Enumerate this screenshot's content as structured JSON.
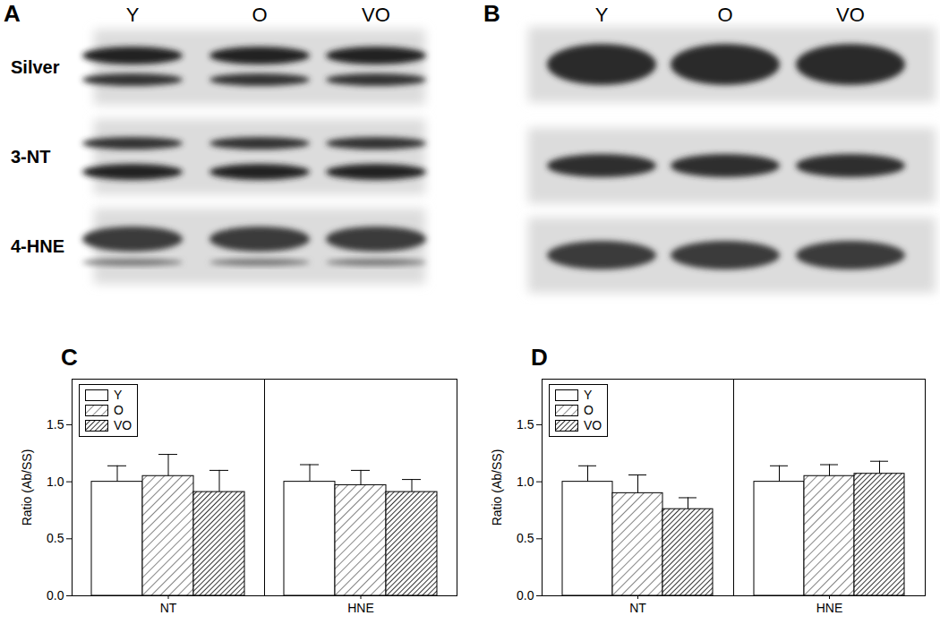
{
  "chart_data": [
    {
      "panel": "C",
      "type": "bar",
      "categories": [
        "NT",
        "HNE"
      ],
      "ylabel": "Ratio (Ab/SS)",
      "ylim": [
        0,
        1.9
      ],
      "yticks": [
        {
          "value": 0,
          "label": "0.0"
        },
        {
          "value": 0.5,
          "label": "0.5"
        },
        {
          "value": 1,
          "label": "1.0"
        },
        {
          "value": 1.5,
          "label": "1.5"
        }
      ],
      "legend": "top-left",
      "series": [
        {
          "name": "Y",
          "color": "#ffffff",
          "marker": "none",
          "values": [
            1.0,
            1.0
          ],
          "errors": [
            0.14,
            0.15
          ]
        },
        {
          "name": "O",
          "color": "#333333",
          "marker": "hatch",
          "values": [
            1.05,
            0.97
          ],
          "errors": [
            0.19,
            0.13
          ]
        },
        {
          "name": "VO",
          "color": "#333333",
          "marker": "dense_hatch",
          "values": [
            0.91,
            0.91
          ],
          "errors": [
            0.19,
            0.11
          ]
        }
      ]
    },
    {
      "panel": "D",
      "type": "bar",
      "categories": [
        "NT",
        "HNE"
      ],
      "ylabel": "Ratio (Ab/SS)",
      "ylim": [
        0,
        1.9
      ],
      "yticks": [
        {
          "value": 0,
          "label": "0.0"
        },
        {
          "value": 0.5,
          "label": "0.5"
        },
        {
          "value": 1,
          "label": "1.0"
        },
        {
          "value": 1.5,
          "label": "1.5"
        }
      ],
      "legend": "top-left",
      "series": [
        {
          "name": "Y",
          "color": "#ffffff",
          "marker": "none",
          "values": [
            1.0,
            1.0
          ],
          "errors": [
            0.14,
            0.14
          ]
        },
        {
          "name": "O",
          "color": "#333333",
          "marker": "hatch",
          "values": [
            0.9,
            1.05
          ],
          "errors": [
            0.16,
            0.1
          ]
        },
        {
          "name": "VO",
          "color": "#333333",
          "marker": "dense_hatch",
          "values": [
            0.76,
            1.07
          ],
          "errors": [
            0.1,
            0.11
          ]
        }
      ]
    }
  ],
  "blots": [
    {
      "panel": "A",
      "lanes": [
        "Y",
        "O",
        "VO"
      ],
      "rows": [
        "Silver",
        "3-NT",
        "4-HNE"
      ]
    },
    {
      "panel": "B",
      "lanes": [
        "Y",
        "O",
        "VO"
      ]
    }
  ]
}
